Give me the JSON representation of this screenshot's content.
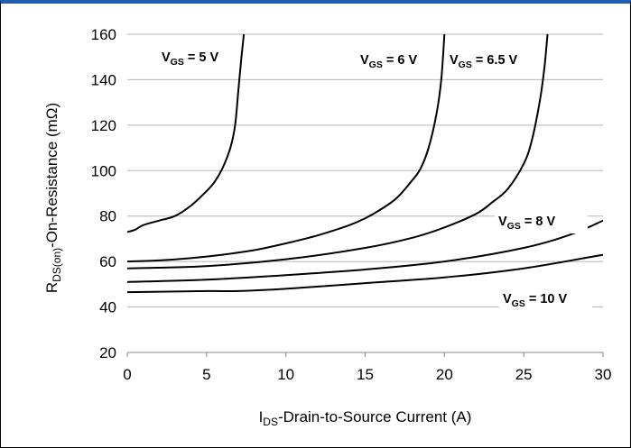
{
  "chart_data": {
    "type": "line",
    "xlabel": {
      "main": "I",
      "sub": "DS",
      "rest": "-Drain-to-Source Current (A)"
    },
    "ylabel": {
      "main": "R",
      "sub": "DS(on)",
      "rest": "-On-Resistance (mΩ)"
    },
    "xlim": [
      0,
      30
    ],
    "ylim": [
      20,
      160
    ],
    "x_ticks": [
      0,
      5,
      10,
      15,
      20,
      25,
      30
    ],
    "y_ticks": [
      20,
      40,
      60,
      80,
      100,
      120,
      140,
      160
    ],
    "grid": "horizontal",
    "series": [
      {
        "name": {
          "main": "V",
          "sub": "GS",
          "rest": " = 5 V"
        },
        "points": [
          [
            0,
            73
          ],
          [
            0.5,
            74
          ],
          [
            1,
            76
          ],
          [
            2,
            78
          ],
          [
            3,
            80
          ],
          [
            4,
            84.5
          ],
          [
            5,
            91
          ],
          [
            5.5,
            95
          ],
          [
            6,
            101
          ],
          [
            6.5,
            110
          ],
          [
            6.8,
            120
          ],
          [
            7,
            135
          ],
          [
            7.2,
            150
          ],
          [
            7.35,
            160
          ]
        ]
      },
      {
        "name": {
          "main": "V",
          "sub": "GS",
          "rest": " = 6 V"
        },
        "points": [
          [
            0,
            60
          ],
          [
            2,
            60.5
          ],
          [
            4,
            61.5
          ],
          [
            6,
            63
          ],
          [
            8,
            65
          ],
          [
            10,
            68
          ],
          [
            12,
            71.5
          ],
          [
            14,
            76
          ],
          [
            15,
            79
          ],
          [
            16,
            83
          ],
          [
            17,
            88
          ],
          [
            18,
            96
          ],
          [
            18.5,
            101
          ],
          [
            19,
            110
          ],
          [
            19.5,
            125
          ],
          [
            19.8,
            140
          ],
          [
            20,
            160
          ]
        ]
      },
      {
        "name": {
          "main": "V",
          "sub": "GS",
          "rest": " = 6.5 V"
        },
        "points": [
          [
            0,
            57
          ],
          [
            5,
            58
          ],
          [
            10,
            61
          ],
          [
            15,
            66
          ],
          [
            18,
            70.5
          ],
          [
            20,
            75
          ],
          [
            22,
            81
          ],
          [
            23,
            86
          ],
          [
            24,
            92
          ],
          [
            25,
            103
          ],
          [
            25.5,
            113
          ],
          [
            26,
            130
          ],
          [
            26.3,
            145
          ],
          [
            26.5,
            160
          ]
        ]
      },
      {
        "name": {
          "main": "V",
          "sub": "GS",
          "rest": " = 8 V"
        },
        "points": [
          [
            0,
            51
          ],
          [
            5,
            52
          ],
          [
            10,
            54
          ],
          [
            15,
            56.5
          ],
          [
            20,
            60
          ],
          [
            25,
            66
          ],
          [
            28,
            72
          ],
          [
            30,
            78
          ]
        ]
      },
      {
        "name": {
          "main": "V",
          "sub": "GS",
          "rest": " = 10 V"
        },
        "points": [
          [
            0,
            46.5
          ],
          [
            5,
            47
          ],
          [
            7,
            47
          ],
          [
            10,
            48
          ],
          [
            15,
            50.5
          ],
          [
            20,
            53
          ],
          [
            25,
            57
          ],
          [
            30,
            63
          ]
        ]
      }
    ],
    "line_color": "#000000"
  }
}
